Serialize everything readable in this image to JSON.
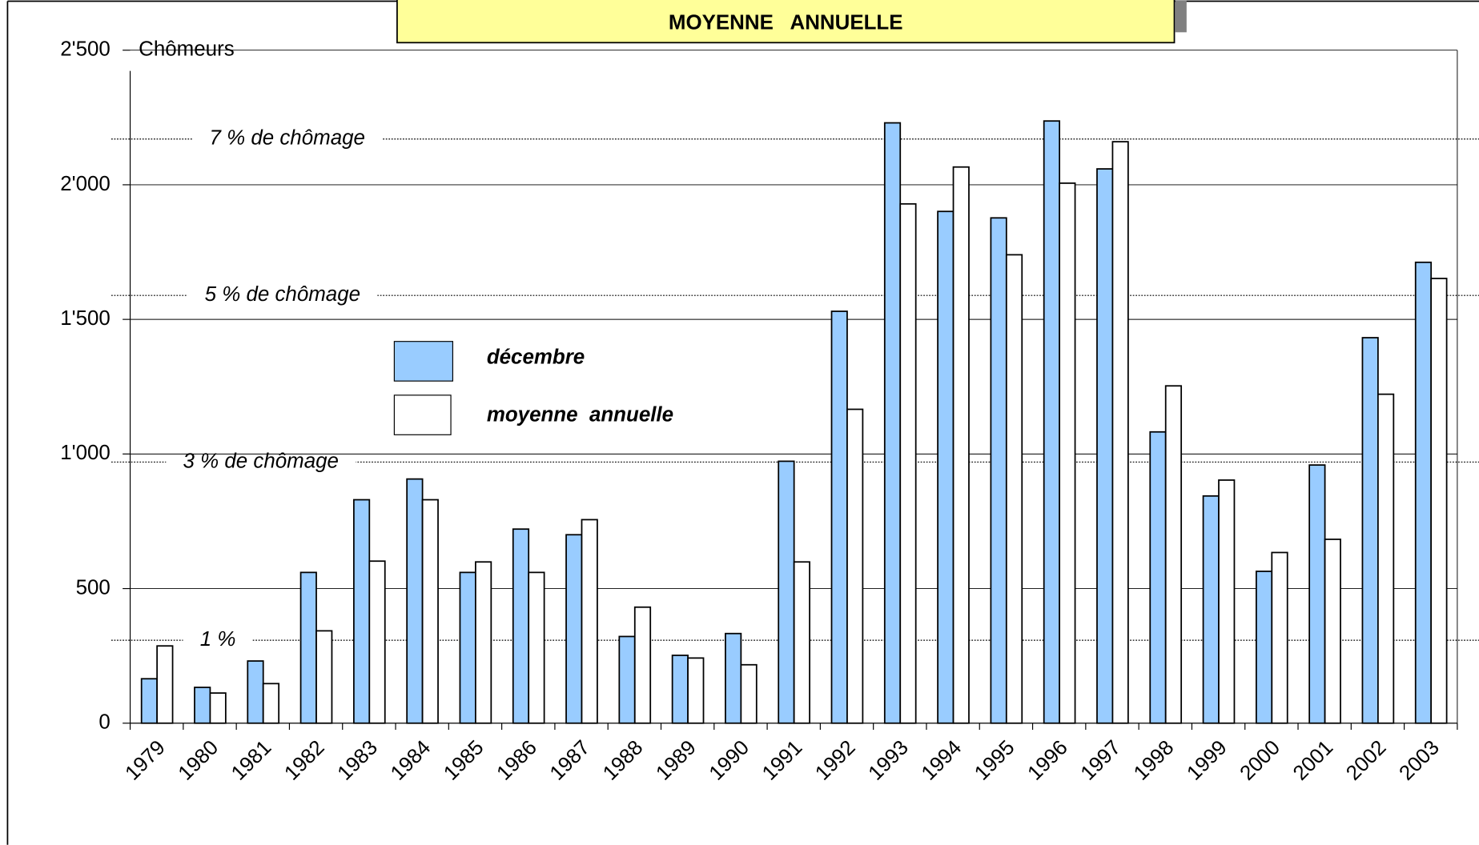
{
  "chart_data": {
    "type": "bar",
    "title": "MOYENNE   ANNUELLE",
    "y_label": "Chômeurs",
    "categories": [
      "1979",
      "1980",
      "1981",
      "1982",
      "1983",
      "1984",
      "1985",
      "1986",
      "1987",
      "1988",
      "1989",
      "1990",
      "1991",
      "1992",
      "1993",
      "1994",
      "1995",
      "1996",
      "1997",
      "1998",
      "1999",
      "2000",
      "2001",
      "2002",
      "2003"
    ],
    "series": [
      {
        "name": "décembre",
        "color": "#99ccff",
        "values": [
          165,
          133,
          231,
          560,
          830,
          907,
          560,
          721,
          700,
          322,
          252,
          333,
          973,
          1530,
          2230,
          1901,
          1877,
          2237,
          2059,
          1082,
          844,
          564,
          959,
          1432,
          1712
        ]
      },
      {
        "name": "moyenne  annuelle",
        "color": "#ffffff",
        "values": [
          287,
          112,
          147,
          343,
          602,
          830,
          599,
          560,
          756,
          431,
          242,
          217,
          599,
          1166,
          1929,
          2066,
          1740,
          2006,
          2160,
          1253,
          903,
          634,
          683,
          1222,
          1652
        ]
      }
    ],
    "ylim": [
      0,
      2500
    ],
    "yticks": [
      0,
      500,
      {
        "value": 1000,
        "label": "1'000"
      },
      {
        "value": 1500,
        "label": "1'500"
      },
      {
        "value": 2000,
        "label": "2'000"
      },
      {
        "value": 2500,
        "label": "2'500"
      }
    ],
    "grid": true,
    "reference_lines": [
      {
        "value": 2170,
        "label": "7 % de chômage"
      },
      {
        "value": 1589,
        "label": "5 % de chômage"
      },
      {
        "value": 970,
        "label": "3 % de chômage"
      },
      {
        "value": 308,
        "label": "1 %"
      }
    ]
  }
}
